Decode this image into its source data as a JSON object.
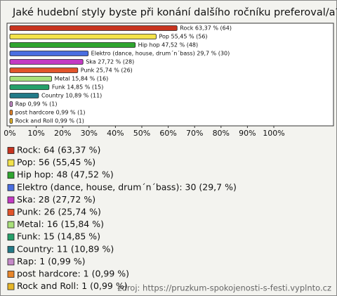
{
  "chart_data": {
    "type": "bar",
    "orientation": "horizontal",
    "title": "Jaké hudební styly byste při konání dalšího ročníku preferoval/a?",
    "source": "zdroj: https://pruzkum-spokojenosti-s-festi.vyplnto.cz",
    "categories": [
      "Rock",
      "Pop",
      "Hip hop",
      "Elektro (dance, house, drum´n´bass)",
      "Ska",
      "Punk",
      "Metal",
      "Funk",
      "Country",
      "Rap",
      "post hardcore",
      "Rock and Roll"
    ],
    "values": [
      63.37,
      55.45,
      47.52,
      29.7,
      27.72,
      25.74,
      15.84,
      14.85,
      10.89,
      0.99,
      0.99,
      0.99
    ],
    "value_labels": [
      "Rock 63,37 % (64)",
      "Pop 55,45 % (56)",
      "Hip hop 47,52 % (48)",
      "Elektro (dance, house, drum´n´bass) 29,7 % (30)",
      "Ska 27,72 % (28)",
      "Punk 25,74 % (26)",
      "Metal 15,84 % (16)",
      "Funk 14,85 % (15)",
      "Country 10,89 % (11)",
      "Rap 0,99 % (1)",
      "post hardcore 0,99 % (1)",
      "Rock and Roll 0,99 % (1)"
    ],
    "legend_labels": [
      "Rock: 64 (63,37 %)",
      "Pop: 56 (55,45 %)",
      "Hip hop: 48 (47,52 %)",
      "Elektro (dance, house, drum´n´bass): 30 (29,7 %)",
      "Ska: 28 (27,72 %)",
      "Punk: 26 (25,74 %)",
      "Metal: 16 (15,84 %)",
      "Funk: 15 (14,85 %)",
      "Country: 11 (10,89 %)",
      "Rap: 1 (0,99 %)",
      "post hardcore: 1 (0,99 %)",
      "Rock and Roll: 1 (0,99 %)"
    ],
    "colors": [
      "#c8341f",
      "#f2e24a",
      "#2fa62f",
      "#4a6ee0",
      "#c43ac4",
      "#e2542a",
      "#a8e07a",
      "#25a06a",
      "#227a88",
      "#c58ac8",
      "#e8862a",
      "#e6b628"
    ],
    "xlim": [
      0,
      100
    ],
    "xticks": [
      {
        "value": 0,
        "label": "0%"
      },
      {
        "value": 10,
        "label": "10%"
      },
      {
        "value": 20,
        "label": "20%"
      },
      {
        "value": 30,
        "label": "30%"
      },
      {
        "value": 40,
        "label": "40%"
      },
      {
        "value": 50,
        "label": "50%"
      },
      {
        "value": 60,
        "label": "60%"
      },
      {
        "value": 70,
        "label": "70%"
      },
      {
        "value": 80,
        "label": "80%"
      },
      {
        "value": 90,
        "label": "90%"
      },
      {
        "value": 100,
        "label": "100%"
      }
    ]
  }
}
